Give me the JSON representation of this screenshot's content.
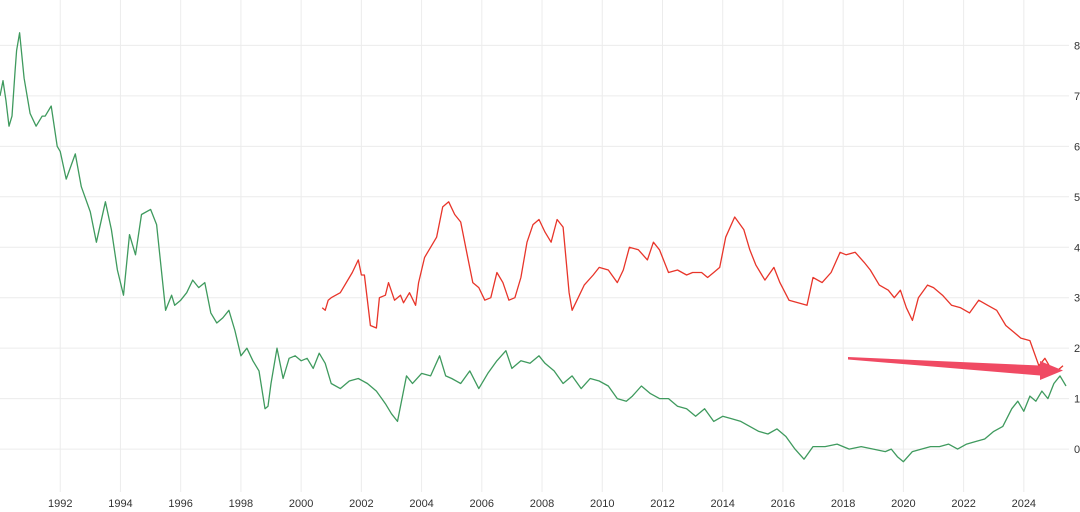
{
  "chart_data": {
    "type": "line",
    "title": "",
    "xlabel": "",
    "ylabel": "",
    "xlim": [
      1990.0,
      2025.5
    ],
    "ylim": [
      -0.5,
      8.5
    ],
    "grid": true,
    "x_ticks": [
      "1992",
      "1994",
      "1996",
      "1998",
      "2000",
      "2002",
      "2004",
      "2006",
      "2008",
      "2010",
      "2012",
      "2014",
      "2016",
      "2018",
      "2020",
      "2022",
      "2024"
    ],
    "y_ticks": [
      "0",
      "1",
      "2",
      "3",
      "4",
      "5",
      "6",
      "7",
      "8"
    ],
    "series": [
      {
        "color": "#e8352a",
        "x": [
          2000.7,
          2000.8,
          2000.9,
          2001.0,
          2001.3,
          2001.7,
          2001.9,
          2002.0,
          2002.1,
          2002.3,
          2002.5,
          2002.6,
          2002.8,
          2002.9,
          2003.1,
          2003.3,
          2003.4,
          2003.6,
          2003.8,
          2003.9,
          2004.1,
          2004.3,
          2004.5,
          2004.7,
          2004.9,
          2005.1,
          2005.3,
          2005.5,
          2005.7,
          2005.9,
          2006.1,
          2006.3,
          2006.5,
          2006.7,
          2006.9,
          2007.1,
          2007.3,
          2007.5,
          2007.7,
          2007.9,
          2008.1,
          2008.3,
          2008.5,
          2008.7,
          2008.9,
          2009.0,
          2009.2,
          2009.4,
          2009.7,
          2009.9,
          2010.2,
          2010.5,
          2010.7,
          2010.9,
          2011.2,
          2011.5,
          2011.7,
          2011.9,
          2012.2,
          2012.5,
          2012.8,
          2013.0,
          2013.3,
          2013.5,
          2013.7,
          2013.9,
          2014.1,
          2014.4,
          2014.7,
          2014.9,
          2015.1,
          2015.4,
          2015.7,
          2015.9,
          2016.2,
          2016.5,
          2016.8,
          2017.0,
          2017.3,
          2017.6,
          2017.9,
          2018.1,
          2018.4,
          2018.7,
          2018.9,
          2019.2,
          2019.5,
          2019.7,
          2019.9,
          2020.1,
          2020.3,
          2020.5,
          2020.8,
          2021.0,
          2021.3,
          2021.6,
          2021.9,
          2022.2,
          2022.5,
          2022.8,
          2023.1,
          2023.4,
          2023.7,
          2023.9,
          2024.2,
          2024.5,
          2024.7,
          2024.9,
          2025.1,
          2025.3
        ],
        "y": [
          2.8,
          2.75,
          2.95,
          3.0,
          3.1,
          3.5,
          3.75,
          3.45,
          3.45,
          2.45,
          2.4,
          3.0,
          3.05,
          3.3,
          2.95,
          3.05,
          2.9,
          3.1,
          2.85,
          3.3,
          3.8,
          4.0,
          4.2,
          4.8,
          4.9,
          4.65,
          4.5,
          3.9,
          3.3,
          3.2,
          2.95,
          3.0,
          3.5,
          3.3,
          2.95,
          3.0,
          3.4,
          4.1,
          4.45,
          4.55,
          4.3,
          4.1,
          4.55,
          4.4,
          3.1,
          2.75,
          3.0,
          3.25,
          3.45,
          3.6,
          3.55,
          3.3,
          3.55,
          4.0,
          3.95,
          3.75,
          4.1,
          3.95,
          3.5,
          3.55,
          3.45,
          3.5,
          3.5,
          3.4,
          3.5,
          3.6,
          4.2,
          4.6,
          4.35,
          3.95,
          3.65,
          3.35,
          3.6,
          3.3,
          2.95,
          2.9,
          2.85,
          3.4,
          3.3,
          3.5,
          3.9,
          3.85,
          3.9,
          3.7,
          3.55,
          3.25,
          3.15,
          3.0,
          3.15,
          2.8,
          2.55,
          3.0,
          3.25,
          3.2,
          3.05,
          2.85,
          2.8,
          2.7,
          2.95,
          2.85,
          2.75,
          2.45,
          2.3,
          2.2,
          2.15,
          1.65,
          1.8,
          1.6,
          1.55,
          1.65
        ]
      },
      {
        "color": "#3f9a5e",
        "x": [
          1990.0,
          1990.1,
          1990.2,
          1990.3,
          1990.4,
          1990.5,
          1990.55,
          1990.65,
          1990.8,
          1991.0,
          1991.2,
          1991.4,
          1991.5,
          1991.7,
          1991.9,
          1992.0,
          1992.2,
          1992.5,
          1992.7,
          1993.0,
          1993.2,
          1993.5,
          1993.7,
          1993.9,
          1994.1,
          1994.3,
          1994.5,
          1994.7,
          1995.0,
          1995.2,
          1995.5,
          1995.7,
          1995.8,
          1996.0,
          1996.2,
          1996.4,
          1996.6,
          1996.8,
          1997.0,
          1997.2,
          1997.4,
          1997.6,
          1997.8,
          1998.0,
          1998.2,
          1998.4,
          1998.6,
          1998.8,
          1998.9,
          1999.0,
          1999.2,
          1999.4,
          1999.6,
          1999.8,
          2000.0,
          2000.2,
          2000.4,
          2000.6,
          2000.8,
          2001.0,
          2001.3,
          2001.6,
          2001.9,
          2002.2,
          2002.5,
          2002.8,
          2003.0,
          2003.2,
          2003.5,
          2003.7,
          2004.0,
          2004.3,
          2004.6,
          2004.8,
          2005.0,
          2005.3,
          2005.6,
          2005.9,
          2006.2,
          2006.5,
          2006.8,
          2007.0,
          2007.3,
          2007.6,
          2007.9,
          2008.1,
          2008.4,
          2008.7,
          2009.0,
          2009.3,
          2009.6,
          2009.9,
          2010.2,
          2010.5,
          2010.8,
          2011.0,
          2011.3,
          2011.6,
          2011.9,
          2012.2,
          2012.5,
          2012.8,
          2013.1,
          2013.4,
          2013.7,
          2014.0,
          2014.3,
          2014.6,
          2014.9,
          2015.2,
          2015.5,
          2015.8,
          2016.1,
          2016.4,
          2016.7,
          2017.0,
          2017.4,
          2017.8,
          2018.2,
          2018.6,
          2019.0,
          2019.4,
          2019.6,
          2019.8,
          2020.0,
          2020.3,
          2020.6,
          2020.9,
          2021.2,
          2021.5,
          2021.8,
          2022.1,
          2022.4,
          2022.7,
          2023.0,
          2023.3,
          2023.6,
          2023.8,
          2024.0,
          2024.2,
          2024.4,
          2024.6,
          2024.8,
          2025.0,
          2025.2,
          2025.4
        ],
        "y": [
          7.0,
          7.3,
          6.9,
          6.4,
          6.6,
          7.5,
          7.9,
          8.25,
          7.35,
          6.65,
          6.4,
          6.6,
          6.6,
          6.8,
          6.0,
          5.9,
          5.35,
          5.85,
          5.2,
          4.7,
          4.1,
          4.9,
          4.35,
          3.55,
          3.05,
          4.25,
          3.85,
          4.65,
          4.75,
          4.45,
          2.75,
          3.05,
          2.85,
          2.95,
          3.1,
          3.35,
          3.2,
          3.3,
          2.7,
          2.5,
          2.6,
          2.75,
          2.35,
          1.85,
          2.0,
          1.75,
          1.55,
          0.8,
          0.85,
          1.3,
          2.0,
          1.4,
          1.8,
          1.85,
          1.75,
          1.8,
          1.6,
          1.9,
          1.7,
          1.3,
          1.2,
          1.35,
          1.4,
          1.3,
          1.15,
          0.9,
          0.7,
          0.55,
          1.45,
          1.3,
          1.5,
          1.45,
          1.85,
          1.45,
          1.4,
          1.3,
          1.55,
          1.2,
          1.5,
          1.75,
          1.95,
          1.6,
          1.75,
          1.7,
          1.85,
          1.7,
          1.55,
          1.3,
          1.45,
          1.2,
          1.4,
          1.35,
          1.25,
          1.0,
          0.95,
          1.05,
          1.25,
          1.1,
          1.0,
          1.0,
          0.85,
          0.8,
          0.65,
          0.8,
          0.55,
          0.65,
          0.6,
          0.55,
          0.45,
          0.35,
          0.3,
          0.4,
          0.25,
          0.0,
          -0.2,
          0.05,
          0.05,
          0.1,
          0.0,
          0.05,
          0.0,
          -0.05,
          0.0,
          -0.15,
          -0.25,
          -0.05,
          0.0,
          0.05,
          0.05,
          0.1,
          0.0,
          0.1,
          0.15,
          0.2,
          0.35,
          0.45,
          0.8,
          0.95,
          0.75,
          1.05,
          0.95,
          1.15,
          1.0,
          1.3,
          1.45,
          1.25
        ]
      }
    ]
  },
  "annotation": {
    "arrow_color": "#f04a63"
  }
}
